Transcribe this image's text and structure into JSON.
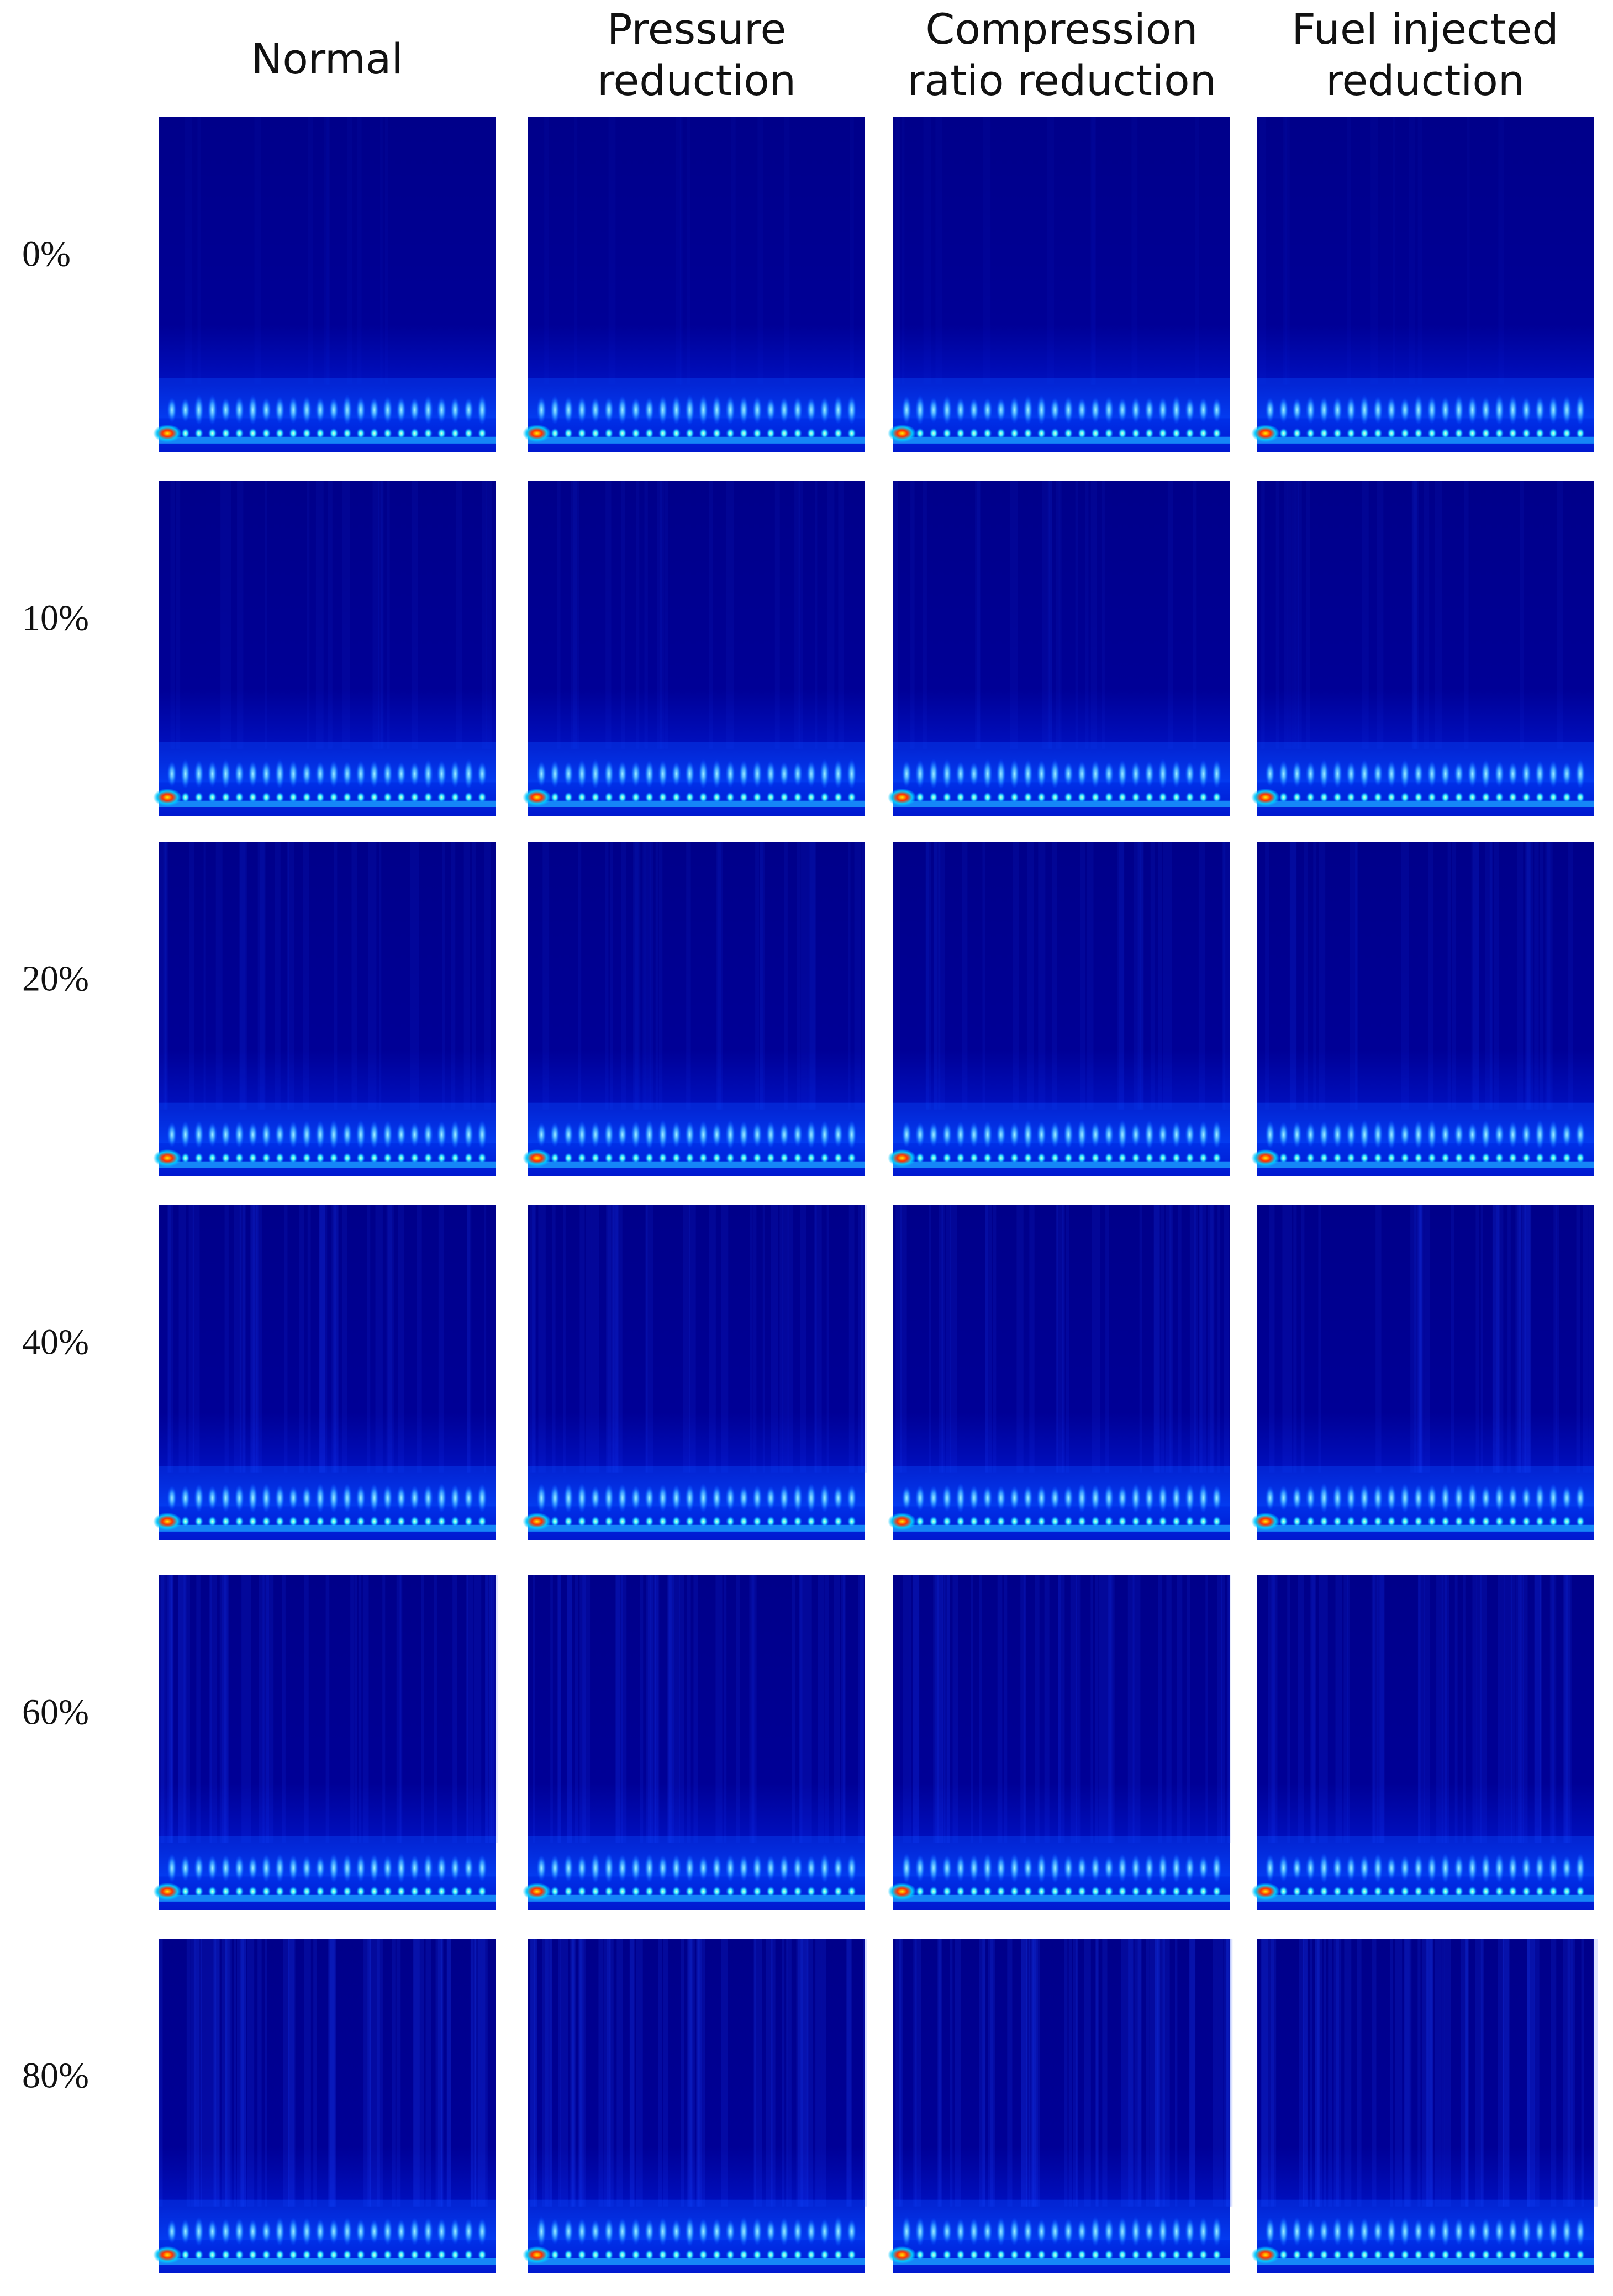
{
  "columns": [
    [
      "Normal"
    ],
    [
      "Pressure",
      "reduction"
    ],
    [
      "Compression",
      "ratio reduction"
    ],
    [
      "Fuel injected",
      "reduction"
    ]
  ],
  "rows": [
    "0%",
    "10%",
    "20%",
    "40%",
    "60%",
    "80%"
  ]
}
